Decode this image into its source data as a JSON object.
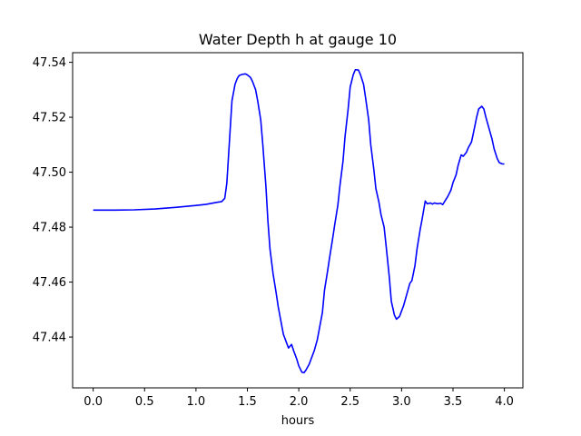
{
  "chart_data": {
    "type": "line",
    "title": "Water Depth h at gauge 10",
    "xlabel": "hours",
    "ylabel": "",
    "xlim": [
      -0.2,
      4.18
    ],
    "ylim": [
      47.4215,
      47.5435
    ],
    "xticks": [
      0.0,
      0.5,
      1.0,
      1.5,
      2.0,
      2.5,
      3.0,
      3.5,
      4.0
    ],
    "xtick_labels": [
      "0.0",
      "0.5",
      "1.0",
      "1.5",
      "2.0",
      "2.5",
      "3.0",
      "3.5",
      "4.0"
    ],
    "yticks": [
      47.44,
      47.46,
      47.48,
      47.5,
      47.52,
      47.54
    ],
    "ytick_labels": [
      "47.44",
      "47.46",
      "47.48",
      "47.50",
      "47.52",
      "47.54"
    ],
    "grid": false,
    "series_color": "#0000ff",
    "x": [
      0.0,
      0.2,
      0.4,
      0.6,
      0.8,
      1.0,
      1.1,
      1.2,
      1.25,
      1.28,
      1.3,
      1.32,
      1.35,
      1.38,
      1.4,
      1.42,
      1.45,
      1.48,
      1.5,
      1.53,
      1.55,
      1.58,
      1.6,
      1.63,
      1.65,
      1.68,
      1.7,
      1.72,
      1.75,
      1.78,
      1.8,
      1.82,
      1.85,
      1.88,
      1.9,
      1.93,
      1.95,
      1.98,
      2.0,
      2.03,
      2.05,
      2.07,
      2.1,
      2.12,
      2.15,
      2.18,
      2.2,
      2.23,
      2.25,
      2.28,
      2.3,
      2.33,
      2.35,
      2.38,
      2.4,
      2.43,
      2.45,
      2.48,
      2.5,
      2.53,
      2.55,
      2.58,
      2.6,
      2.63,
      2.65,
      2.68,
      2.7,
      2.73,
      2.75,
      2.78,
      2.8,
      2.83,
      2.85,
      2.88,
      2.9,
      2.93,
      2.95,
      2.98,
      3.0,
      3.02,
      3.05,
      3.08,
      3.1,
      3.13,
      3.15,
      3.18,
      3.2,
      3.23,
      3.25,
      3.28,
      3.3,
      3.32,
      3.35,
      3.38,
      3.4,
      3.43,
      3.45,
      3.48,
      3.5,
      3.53,
      3.55,
      3.58,
      3.6,
      3.63,
      3.65,
      3.68,
      3.7,
      3.73,
      3.75,
      3.78,
      3.8,
      3.82,
      3.85,
      3.88,
      3.9,
      3.93,
      3.95,
      3.98,
      4.0
    ],
    "y": [
      47.4862,
      47.4862,
      47.4863,
      47.4866,
      47.4872,
      47.4879,
      47.4883,
      47.489,
      47.4893,
      47.4905,
      47.496,
      47.508,
      47.526,
      47.532,
      47.534,
      47.5352,
      47.5356,
      47.5358,
      47.5354,
      47.5345,
      47.533,
      47.53,
      47.526,
      47.519,
      47.51,
      47.495,
      47.482,
      47.472,
      47.463,
      47.456,
      47.451,
      47.447,
      47.441,
      47.438,
      47.436,
      47.4373,
      47.435,
      47.432,
      47.4295,
      47.4272,
      47.427,
      47.428,
      47.43,
      47.432,
      47.435,
      47.439,
      47.443,
      47.449,
      47.457,
      47.464,
      47.469,
      47.476,
      47.481,
      47.488,
      47.495,
      47.504,
      47.513,
      47.523,
      47.531,
      47.5355,
      47.5373,
      47.5372,
      47.5355,
      47.532,
      47.527,
      47.519,
      47.51,
      47.501,
      47.494,
      47.489,
      47.4845,
      47.48,
      47.473,
      47.462,
      47.453,
      47.448,
      47.4465,
      47.4475,
      47.4495,
      47.4515,
      47.4555,
      47.4595,
      47.4605,
      47.466,
      47.472,
      47.479,
      47.483,
      47.4895,
      47.4885,
      47.4888,
      47.4884,
      47.4888,
      47.4885,
      47.4887,
      47.4882,
      47.49,
      47.4912,
      47.4935,
      47.4962,
      47.499,
      47.5025,
      47.5063,
      47.5058,
      47.5072,
      47.509,
      47.511,
      47.5145,
      47.52,
      47.523,
      47.524,
      47.523,
      47.52,
      47.516,
      47.512,
      47.5085,
      47.505,
      47.5035,
      47.503,
      47.503
    ]
  }
}
